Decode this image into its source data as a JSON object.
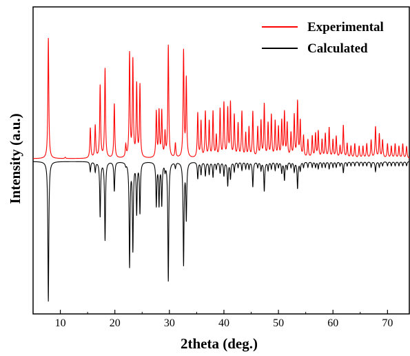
{
  "chart_data": {
    "type": "line",
    "title": "",
    "xlabel": "2theta (deg.)",
    "ylabel": "Intensity (a.u.)",
    "xlim": [
      5,
      74
    ],
    "x_ticks": [
      10,
      20,
      30,
      40,
      50,
      60,
      70
    ],
    "y_ticks_shown": false,
    "grid": false,
    "legend_position": "top-right",
    "series": [
      {
        "name": "Experimental",
        "color": "#ff0000",
        "direction": "up",
        "peaks": [
          [
            7.8,
            1.0
          ],
          [
            10.9,
            0.01
          ],
          [
            15.5,
            0.25
          ],
          [
            16.4,
            0.27
          ],
          [
            17.3,
            0.6
          ],
          [
            18.2,
            0.74
          ],
          [
            19.9,
            0.45
          ],
          [
            22.0,
            0.1
          ],
          [
            22.7,
            0.86
          ],
          [
            23.3,
            0.8
          ],
          [
            24.0,
            0.6
          ],
          [
            24.6,
            0.6
          ],
          [
            27.6,
            0.38
          ],
          [
            28.1,
            0.38
          ],
          [
            28.6,
            0.38
          ],
          [
            29.2,
            0.2
          ],
          [
            29.8,
            0.93
          ],
          [
            31.1,
            0.12
          ],
          [
            32.6,
            0.88
          ],
          [
            33.1,
            0.65
          ],
          [
            35.2,
            0.37
          ],
          [
            35.8,
            0.3
          ],
          [
            36.6,
            0.38
          ],
          [
            37.3,
            0.3
          ],
          [
            38.0,
            0.38
          ],
          [
            38.6,
            0.18
          ],
          [
            39.3,
            0.4
          ],
          [
            40.0,
            0.45
          ],
          [
            40.7,
            0.4
          ],
          [
            41.2,
            0.45
          ],
          [
            41.9,
            0.35
          ],
          [
            42.6,
            0.28
          ],
          [
            43.3,
            0.38
          ],
          [
            44.0,
            0.2
          ],
          [
            44.6,
            0.25
          ],
          [
            45.3,
            0.38
          ],
          [
            46.2,
            0.25
          ],
          [
            46.8,
            0.3
          ],
          [
            47.4,
            0.44
          ],
          [
            48.1,
            0.28
          ],
          [
            48.7,
            0.35
          ],
          [
            49.4,
            0.3
          ],
          [
            50.0,
            0.25
          ],
          [
            50.6,
            0.3
          ],
          [
            51.1,
            0.37
          ],
          [
            51.6,
            0.28
          ],
          [
            52.3,
            0.2
          ],
          [
            52.9,
            0.35
          ],
          [
            53.5,
            0.46
          ],
          [
            54.0,
            0.3
          ],
          [
            54.6,
            0.18
          ],
          [
            55.4,
            0.15
          ],
          [
            56.2,
            0.18
          ],
          [
            56.8,
            0.2
          ],
          [
            57.3,
            0.22
          ],
          [
            58.0,
            0.15
          ],
          [
            58.6,
            0.2
          ],
          [
            59.3,
            0.25
          ],
          [
            60.0,
            0.15
          ],
          [
            60.6,
            0.18
          ],
          [
            61.3,
            0.1
          ],
          [
            61.9,
            0.27
          ],
          [
            62.6,
            0.12
          ],
          [
            63.3,
            0.1
          ],
          [
            64.0,
            0.12
          ],
          [
            64.8,
            0.1
          ],
          [
            65.5,
            0.1
          ],
          [
            66.2,
            0.12
          ],
          [
            67.0,
            0.15
          ],
          [
            67.8,
            0.26
          ],
          [
            68.5,
            0.2
          ],
          [
            69.1,
            0.15
          ],
          [
            70.0,
            0.12
          ],
          [
            70.7,
            0.1
          ],
          [
            71.4,
            0.12
          ],
          [
            72.1,
            0.1
          ],
          [
            72.8,
            0.12
          ],
          [
            73.5,
            0.1
          ]
        ]
      },
      {
        "name": "Calculated",
        "color": "#000000",
        "direction": "down",
        "peaks": [
          [
            7.8,
            1.0
          ],
          [
            15.5,
            0.07
          ],
          [
            16.4,
            0.07
          ],
          [
            17.3,
            0.39
          ],
          [
            18.2,
            0.56
          ],
          [
            19.9,
            0.21
          ],
          [
            22.0,
            0.02
          ],
          [
            22.7,
            0.74
          ],
          [
            23.3,
            0.62
          ],
          [
            24.0,
            0.36
          ],
          [
            24.6,
            0.36
          ],
          [
            27.6,
            0.31
          ],
          [
            28.1,
            0.3
          ],
          [
            28.6,
            0.3
          ],
          [
            29.2,
            0.05
          ],
          [
            29.8,
            0.85
          ],
          [
            31.1,
            0.04
          ],
          [
            32.6,
            0.73
          ],
          [
            33.1,
            0.4
          ],
          [
            35.2,
            0.12
          ],
          [
            35.8,
            0.09
          ],
          [
            36.6,
            0.1
          ],
          [
            37.3,
            0.09
          ],
          [
            38.0,
            0.11
          ],
          [
            38.6,
            0.05
          ],
          [
            39.3,
            0.08
          ],
          [
            40.0,
            0.1
          ],
          [
            40.7,
            0.17
          ],
          [
            41.2,
            0.12
          ],
          [
            41.9,
            0.07
          ],
          [
            42.6,
            0.04
          ],
          [
            43.3,
            0.06
          ],
          [
            44.0,
            0.05
          ],
          [
            44.6,
            0.05
          ],
          [
            45.3,
            0.18
          ],
          [
            46.2,
            0.04
          ],
          [
            46.8,
            0.06
          ],
          [
            47.4,
            0.21
          ],
          [
            48.1,
            0.06
          ],
          [
            48.7,
            0.05
          ],
          [
            49.4,
            0.06
          ],
          [
            50.0,
            0.04
          ],
          [
            50.6,
            0.08
          ],
          [
            51.1,
            0.13
          ],
          [
            51.6,
            0.05
          ],
          [
            52.3,
            0.04
          ],
          [
            52.9,
            0.07
          ],
          [
            53.5,
            0.19
          ],
          [
            54.0,
            0.06
          ],
          [
            54.6,
            0.04
          ],
          [
            55.4,
            0.04
          ],
          [
            56.2,
            0.04
          ],
          [
            56.8,
            0.04
          ],
          [
            57.3,
            0.05
          ],
          [
            58.0,
            0.04
          ],
          [
            58.6,
            0.04
          ],
          [
            59.3,
            0.05
          ],
          [
            60.0,
            0.04
          ],
          [
            60.6,
            0.04
          ],
          [
            61.3,
            0.03
          ],
          [
            61.9,
            0.08
          ],
          [
            62.6,
            0.03
          ],
          [
            63.3,
            0.03
          ],
          [
            64.0,
            0.03
          ],
          [
            64.8,
            0.03
          ],
          [
            65.5,
            0.03
          ],
          [
            66.2,
            0.03
          ],
          [
            67.0,
            0.04
          ],
          [
            67.8,
            0.07
          ],
          [
            68.5,
            0.04
          ],
          [
            69.1,
            0.03
          ],
          [
            70.0,
            0.03
          ],
          [
            70.7,
            0.03
          ],
          [
            71.4,
            0.03
          ],
          [
            72.1,
            0.03
          ],
          [
            72.8,
            0.03
          ],
          [
            73.5,
            0.03
          ]
        ]
      }
    ]
  }
}
